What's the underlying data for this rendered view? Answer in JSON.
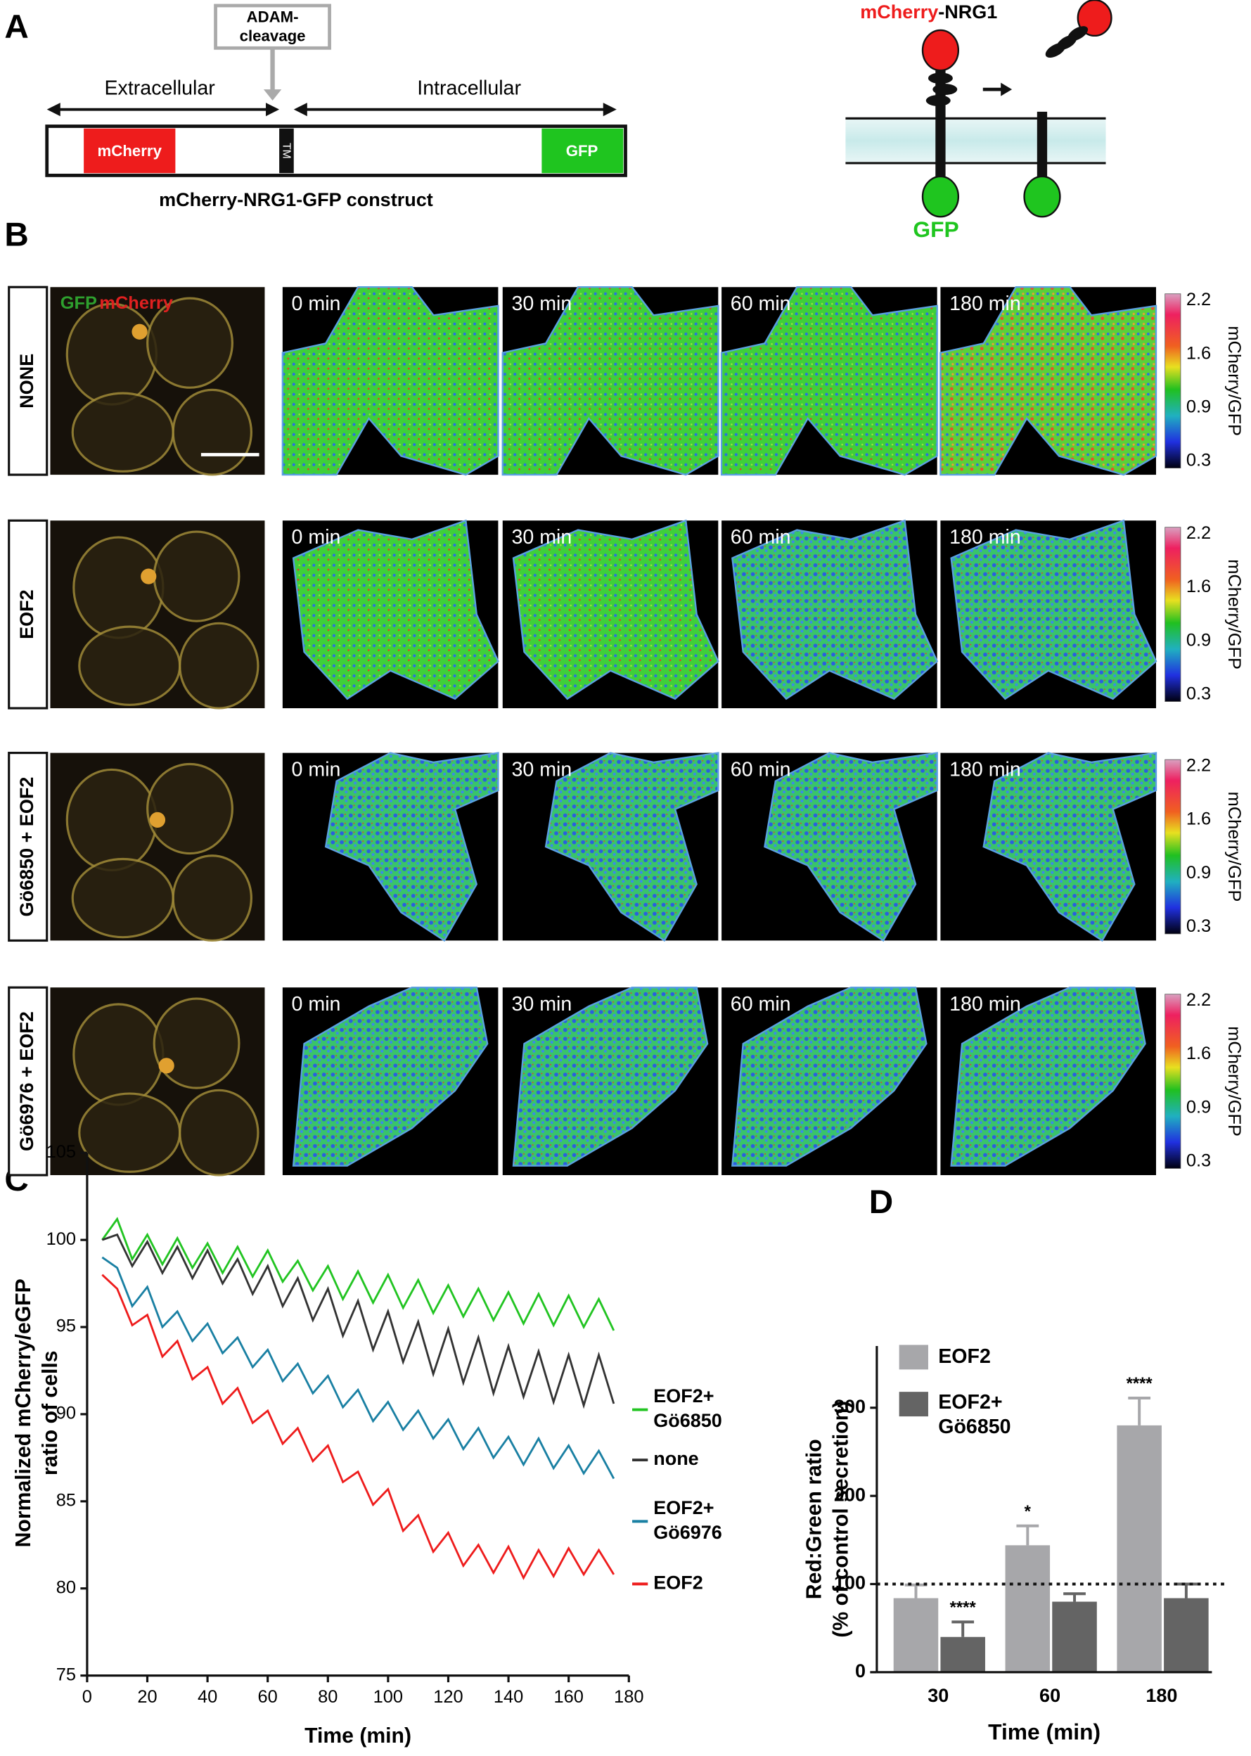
{
  "panel_labels": [
    "A",
    "B",
    "C",
    "D"
  ],
  "panel_a": {
    "extracellular": "Extracellular",
    "intracellular": "Intracellular",
    "cleavage": [
      "ADAM-",
      "cleavage"
    ],
    "mcherry": "mCherry",
    "tm": "TM",
    "gfp": "GFP",
    "construct": "mCherry-NRG1-GFP construct",
    "diagram_mcherry": "mCherry",
    "diagram_nrg1": "-NRG1",
    "diagram_gfp": "GFP"
  },
  "panel_b": {
    "rows": [
      "NONE",
      "EOF2",
      "Gö6850 + EOF2",
      "Gö6976 + EOF2"
    ],
    "composite_labels": [
      "GFP",
      "mCherry"
    ],
    "timepoints": [
      "0 min",
      "30 min",
      "60 min",
      "180 min"
    ],
    "colorbar_label": "mCherry/GFP",
    "colorbar_ticks": [
      2.2,
      1.6,
      0.9,
      0.3
    ]
  },
  "chart_data": [
    {
      "type": "line",
      "xlabel": "Time (min)",
      "ylabel": [
        "Normalized mCherry/eGFP",
        "ratio of cells"
      ],
      "x": [
        5,
        10,
        15,
        20,
        25,
        30,
        35,
        40,
        45,
        50,
        55,
        60,
        65,
        70,
        75,
        80,
        85,
        90,
        95,
        100,
        105,
        110,
        115,
        120,
        125,
        130,
        135,
        140,
        145,
        150,
        155,
        160,
        165,
        170,
        175
      ],
      "xlim": [
        0,
        180
      ],
      "xticks": [
        0,
        20,
        40,
        60,
        80,
        100,
        120,
        140,
        160,
        180
      ],
      "ylim": [
        75,
        105
      ],
      "yticks": [
        75,
        80,
        85,
        90,
        95,
        100,
        105
      ],
      "legend": "right",
      "series": [
        {
          "name": "EOF2+ Gö6850",
          "color": "#22c422",
          "values": [
            100.0,
            101.2,
            98.9,
            100.3,
            98.6,
            100.1,
            98.4,
            99.8,
            98.1,
            99.6,
            97.9,
            99.4,
            97.6,
            98.8,
            97.1,
            98.5,
            96.6,
            98.2,
            96.4,
            98.0,
            96.1,
            97.7,
            95.8,
            97.4,
            95.6,
            97.2,
            95.4,
            97.0,
            95.2,
            96.9,
            95.1,
            96.8,
            95.0,
            96.6,
            94.8
          ]
        },
        {
          "name": "none",
          "color": "#333333",
          "values": [
            100.0,
            100.3,
            98.5,
            99.9,
            98.1,
            99.6,
            97.8,
            99.4,
            97.5,
            98.9,
            96.9,
            98.5,
            96.2,
            97.8,
            95.4,
            97.2,
            94.5,
            96.5,
            93.7,
            95.9,
            93.0,
            95.3,
            92.3,
            94.9,
            91.8,
            94.4,
            91.2,
            93.9,
            91.0,
            93.6,
            90.7,
            93.4,
            90.5,
            93.4,
            90.6
          ]
        },
        {
          "name": "EOF2+ Gö6976",
          "color": "#1a80a3",
          "values": [
            99.0,
            98.4,
            96.2,
            97.3,
            95.0,
            95.9,
            94.2,
            95.2,
            93.5,
            94.4,
            92.7,
            93.7,
            91.9,
            92.9,
            91.2,
            92.2,
            90.4,
            91.4,
            89.6,
            90.7,
            89.1,
            90.2,
            88.6,
            89.7,
            88.0,
            89.2,
            87.5,
            88.7,
            87.1,
            88.6,
            86.9,
            88.2,
            86.6,
            87.9,
            86.3
          ]
        },
        {
          "name": "EOF2",
          "color": "#ee1c1c",
          "values": [
            98.0,
            97.2,
            95.1,
            95.7,
            93.3,
            94.2,
            92.0,
            92.7,
            90.6,
            91.5,
            89.5,
            90.2,
            88.3,
            89.2,
            87.3,
            88.2,
            86.1,
            86.7,
            84.8,
            85.7,
            83.3,
            84.2,
            82.1,
            83.2,
            81.3,
            82.5,
            80.9,
            82.4,
            80.6,
            82.2,
            80.7,
            82.3,
            80.8,
            82.2,
            80.8
          ]
        }
      ]
    },
    {
      "type": "bar",
      "xlabel": "Time (min)",
      "ylabel": [
        "Red:Green ratio",
        "(% of control secretion)"
      ],
      "categories": [
        "30",
        "60",
        "180"
      ],
      "ylim": [
        0,
        370
      ],
      "yticks": [
        0,
        100,
        200,
        300
      ],
      "reference_line": 100,
      "legend": "upper-left",
      "series": [
        {
          "name": "EOF2",
          "color": "#a7a7aa",
          "values": [
            84,
            144,
            280
          ],
          "errors": [
            15,
            22,
            31
          ],
          "significance": [
            null,
            "*",
            "****"
          ]
        },
        {
          "name": "EOF2+ Gö6850",
          "color": "#646464",
          "values": [
            40,
            80,
            84
          ],
          "errors": [
            17,
            9,
            16
          ],
          "significance": [
            "****",
            null,
            null
          ]
        }
      ]
    }
  ]
}
